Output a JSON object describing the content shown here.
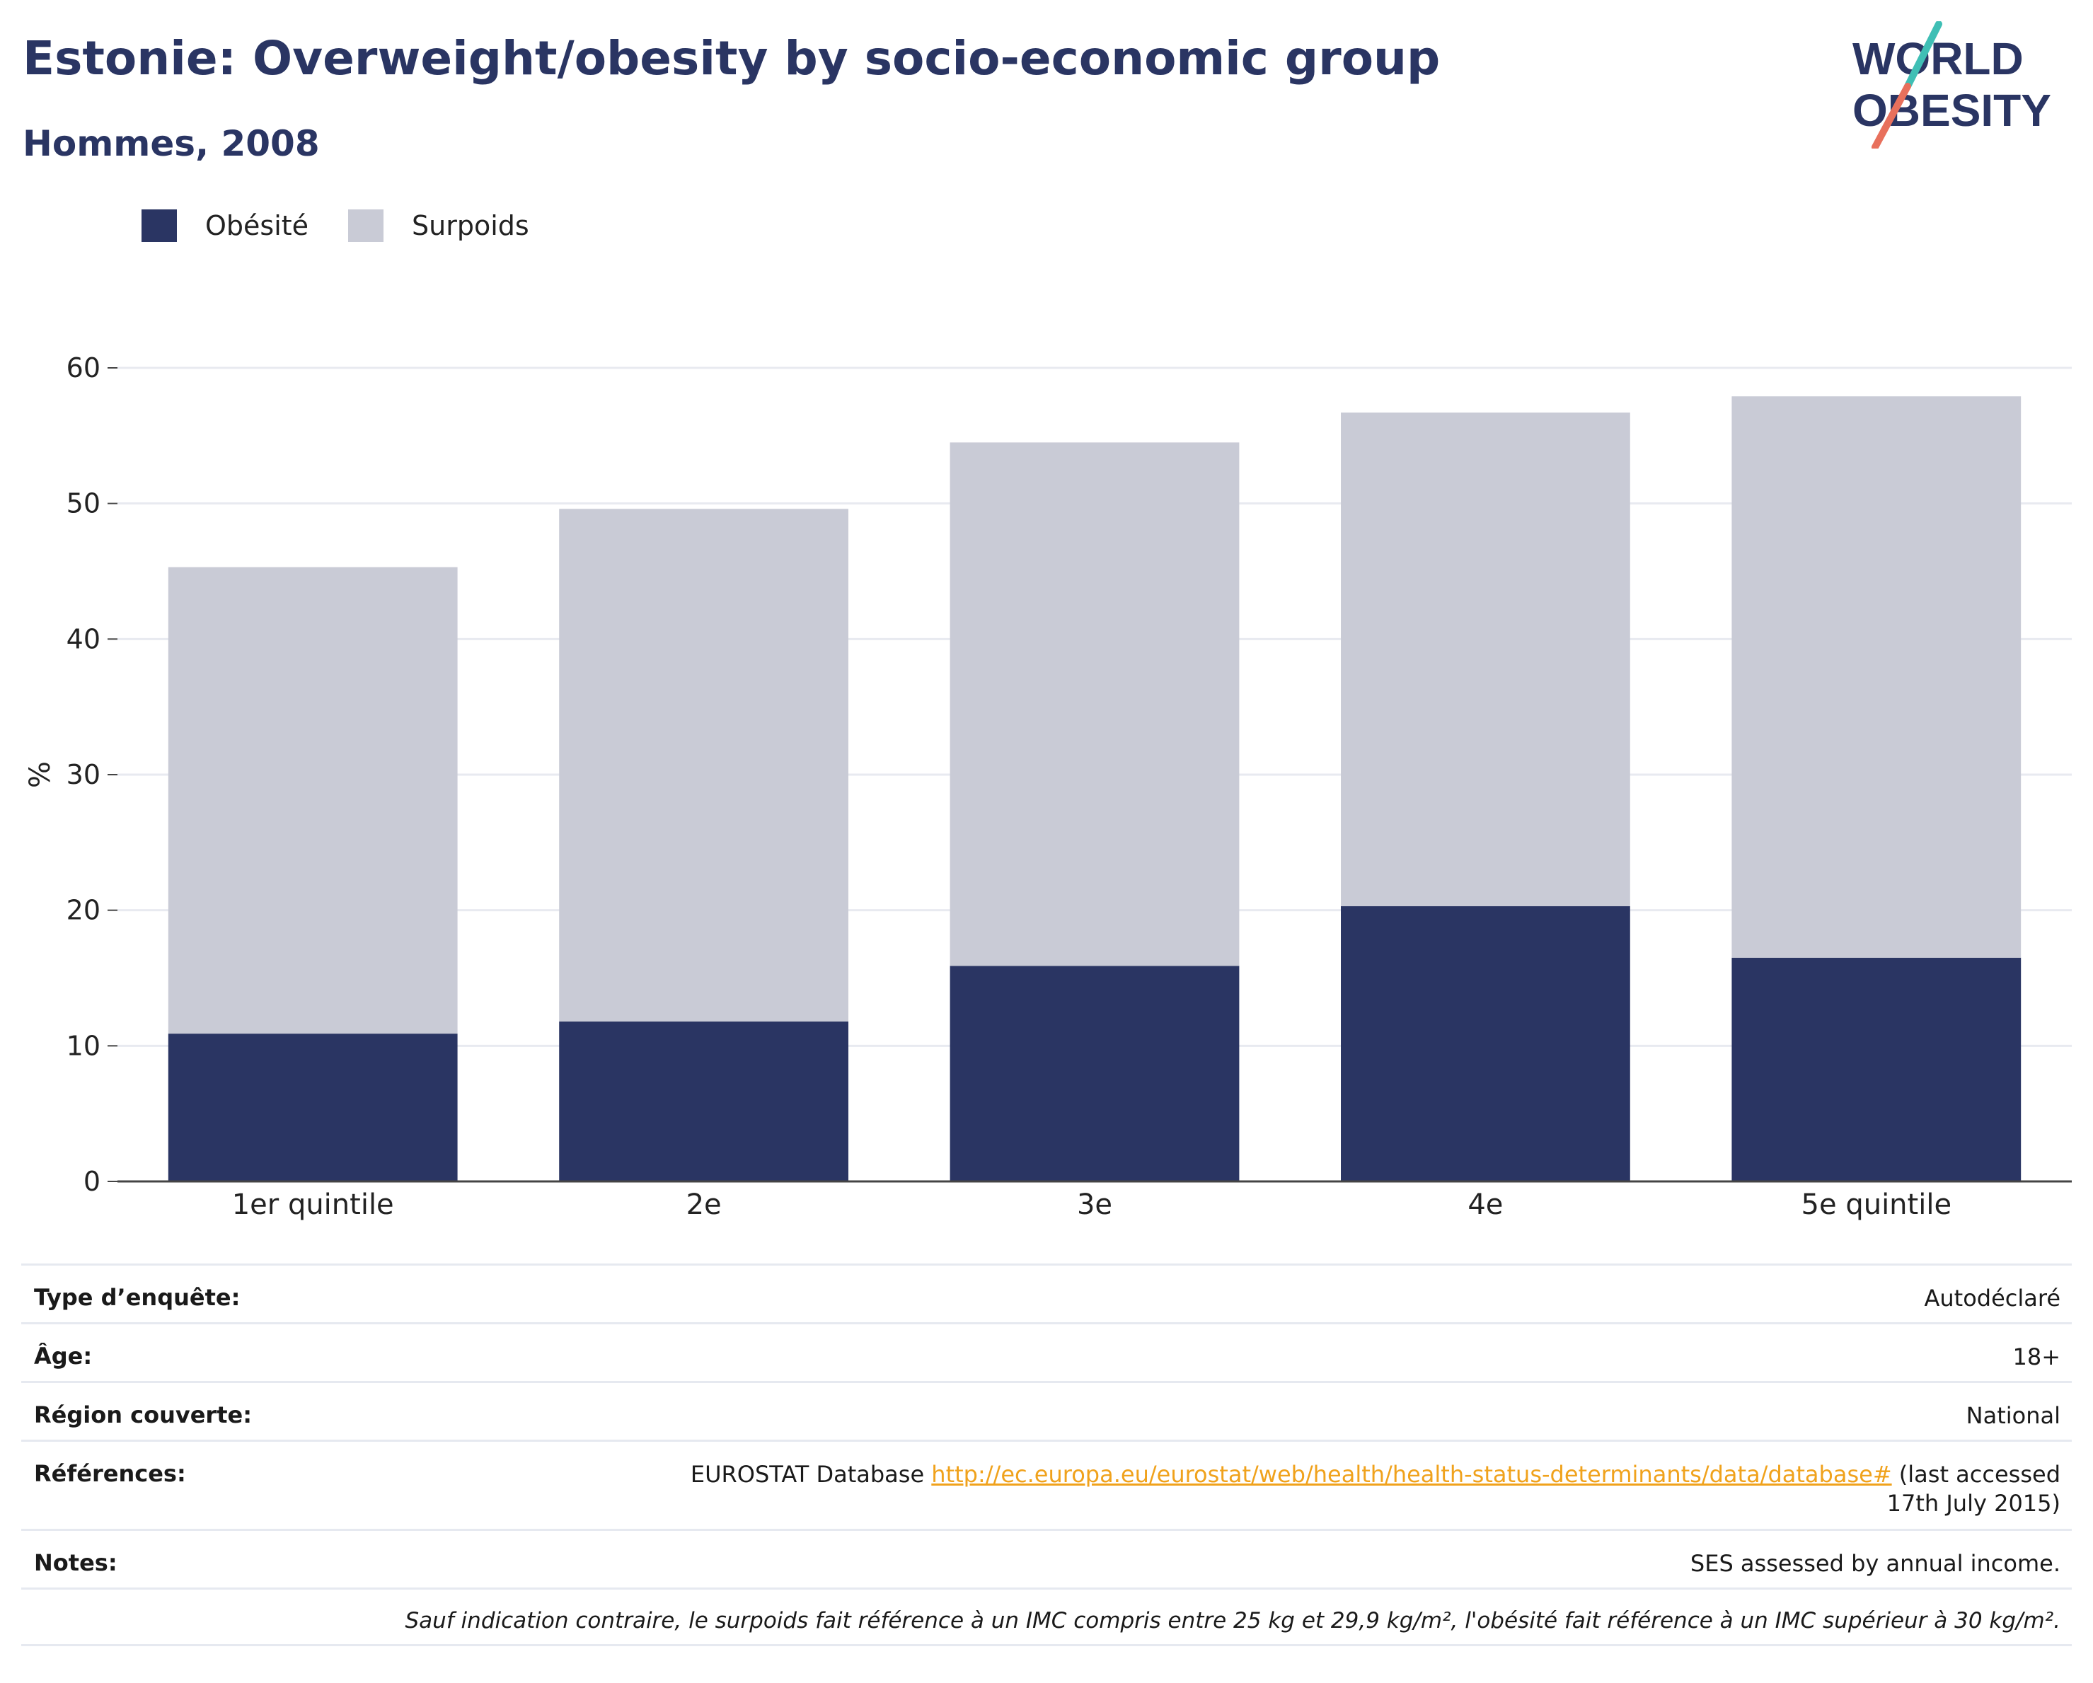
{
  "header": {
    "title": "Estonie: Overweight/obesity by socio-economic group",
    "subtitle": "Hommes, 2008"
  },
  "logo": {
    "line1": "WORLD",
    "line2": "OBESITY"
  },
  "colors": {
    "obesity": "#2a3563",
    "overweight": "#c9cbd6",
    "title": "#2a3563",
    "link": "#f0a21c"
  },
  "legend": {
    "items": [
      "Obésité",
      "Surpoids"
    ]
  },
  "chart_data": {
    "type": "bar",
    "stacked": true,
    "categories": [
      "1er quintile",
      "2e",
      "3e",
      "4e",
      "5e quintile"
    ],
    "series": [
      {
        "name": "Obésité",
        "values": [
          10.9,
          11.8,
          15.9,
          20.3,
          16.5
        ]
      },
      {
        "name": "Surpoids",
        "values": [
          34.4,
          37.8,
          38.6,
          36.4,
          41.4
        ]
      }
    ],
    "ylabel": "%",
    "ylim": [
      0,
      60
    ],
    "yticks": [
      0,
      10,
      20,
      30,
      40,
      50,
      60
    ],
    "grid": true,
    "legend_position": "top-left"
  },
  "meta": {
    "survey_label": "Type d’enquête:",
    "survey_value": "Autodéclaré",
    "age_label": "Âge:",
    "age_value": "18+",
    "region_label": "Région couverte:",
    "region_value": "National",
    "references_label": "Références:",
    "references_prefix": "EUROSTAT Database ",
    "references_link": "http://ec.europa.eu/eurostat/web/health/health-status-determinants/data/database#",
    "references_suffix": " (last accessed 17th July 2015)",
    "notes_label": "Notes:",
    "notes_value": "SES assessed by annual income.",
    "footnote": "Sauf indication contraire, le surpoids fait référence à un IMC compris entre 25 kg et 29,9 kg/m², l'obésité fait référence à un IMC supérieur à 30 kg/m²."
  }
}
